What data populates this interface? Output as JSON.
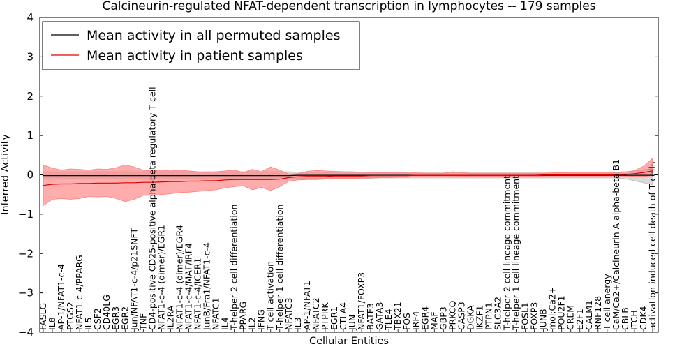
{
  "chart_data": {
    "type": "line",
    "title": "Calcineurin-regulated NFAT-dependent transcription in lymphocytes -- 179 samples",
    "xlabel": "Cellular Entities",
    "ylabel": "Inferred Activity",
    "ylim": [
      -4,
      4
    ],
    "yticks": [
      -4,
      -3,
      -2,
      -1,
      0,
      1,
      2,
      3,
      4
    ],
    "legend_position": "top-left",
    "categories": [
      "FASLG",
      "IL8",
      "AP-1/NFAT1-c-4",
      "PTGS2",
      "NFAT1-c-4/PPARG",
      "IL5",
      "CSF2",
      "CD40LG",
      "EGR3",
      "EGR2",
      "Jun/NFAT1-c-4/p21SNFT",
      "TNF",
      "CD4-positive CD25-positive alpha-beta regulatory T cell",
      "NFAT1-c-4 (dimer)/EGR1",
      "IL2RA",
      "NFAT1-c-4 (dimer)/EGR4",
      "NFAT1-c-4/MAF/IRF4",
      "NFAT1-c-4/ICER1",
      "JunB/Fra1/NFAT1-c-4",
      "NFATC1",
      "IL4",
      "T-helper 2 cell differentiation",
      "PPARG",
      "IL2",
      "IFNG",
      "T cell activation",
      "T-helper 1 cell differentiation",
      "NFATC3",
      "IL3",
      "AP-1/NFAT1",
      "NFATC2",
      "PTPRK",
      "EGR1",
      "CTLA4",
      "JUN",
      "NFAT1/FOXP3",
      "BATF3",
      "GATA3",
      "TLE4",
      "TBX21",
      "FOS",
      "IRF4",
      "EGR4",
      "MAF",
      "GBP3",
      "PRKCQ",
      "CASP3",
      "DGKA",
      "IKZF1",
      "PTPN1",
      "SLC3A2",
      "T-helper 2 cell lineage commitment",
      "T-helper 1 cell lineage commitment",
      "FOSL1",
      "FOXP3",
      "JUNB",
      "mol:Ca2+",
      "POU2F1",
      "CREM",
      "E2F1",
      "CALM1",
      "RNF128",
      "T cell anergy",
      "CaM/Ca2+/Calcineurin A alpha-beta B1",
      "CBLB",
      "ITCH",
      "CDK4",
      "activation-induced cell death of T cells"
    ],
    "series": [
      {
        "name": "Mean activity in all permuted samples",
        "color": "#000000",
        "band_color": "#bbbbbb",
        "values": [
          -0.02,
          -0.02,
          -0.02,
          -0.02,
          -0.02,
          -0.02,
          -0.02,
          -0.02,
          -0.02,
          -0.02,
          -0.02,
          -0.02,
          -0.02,
          -0.02,
          -0.02,
          -0.02,
          -0.02,
          -0.02,
          -0.02,
          -0.02,
          -0.02,
          -0.02,
          -0.02,
          -0.02,
          -0.02,
          -0.02,
          -0.02,
          -0.02,
          -0.01,
          -0.01,
          -0.01,
          -0.01,
          -0.01,
          -0.01,
          -0.01,
          -0.01,
          -0.01,
          -0.01,
          -0.01,
          -0.01,
          -0.01,
          -0.01,
          -0.01,
          -0.01,
          -0.01,
          -0.01,
          -0.01,
          -0.01,
          -0.01,
          -0.01,
          -0.01,
          -0.01,
          -0.01,
          -0.01,
          -0.01,
          -0.01,
          -0.01,
          -0.01,
          -0.01,
          -0.01,
          -0.01,
          -0.01,
          -0.01,
          -0.01,
          -0.01,
          -0.01,
          -0.01,
          -0.01
        ],
        "lower": [
          -0.11,
          -0.11,
          -0.11,
          -0.11,
          -0.11,
          -0.11,
          -0.11,
          -0.11,
          -0.11,
          -0.11,
          -0.11,
          -0.11,
          -0.11,
          -0.11,
          -0.11,
          -0.11,
          -0.11,
          -0.11,
          -0.11,
          -0.11,
          -0.11,
          -0.11,
          -0.11,
          -0.11,
          -0.11,
          -0.11,
          -0.11,
          -0.11,
          -0.09,
          -0.09,
          -0.09,
          -0.09,
          -0.09,
          -0.09,
          -0.09,
          -0.09,
          -0.09,
          -0.08,
          -0.08,
          -0.08,
          -0.08,
          -0.08,
          -0.08,
          -0.08,
          -0.08,
          -0.08,
          -0.08,
          -0.08,
          -0.08,
          -0.08,
          -0.08,
          -0.08,
          -0.08,
          -0.08,
          -0.08,
          -0.08,
          -0.08,
          -0.08,
          -0.08,
          -0.08,
          -0.08,
          -0.08,
          -0.08,
          -0.08,
          -0.1,
          -0.15,
          -0.2,
          -0.25
        ],
        "upper": [
          0.08,
          0.08,
          0.08,
          0.08,
          0.08,
          0.08,
          0.08,
          0.08,
          0.08,
          0.08,
          0.08,
          0.08,
          0.08,
          0.08,
          0.08,
          0.08,
          0.08,
          0.08,
          0.08,
          0.08,
          0.08,
          0.08,
          0.08,
          0.08,
          0.08,
          0.08,
          0.08,
          0.08,
          0.07,
          0.07,
          0.07,
          0.07,
          0.07,
          0.07,
          0.07,
          0.07,
          0.07,
          0.07,
          0.07,
          0.07,
          0.07,
          0.07,
          0.07,
          0.07,
          0.07,
          0.07,
          0.07,
          0.07,
          0.07,
          0.07,
          0.07,
          0.07,
          0.07,
          0.07,
          0.07,
          0.07,
          0.07,
          0.07,
          0.07,
          0.07,
          0.07,
          0.07,
          0.07,
          0.07,
          0.08,
          0.1,
          0.13,
          0.16
        ]
      },
      {
        "name": "Mean activity in patient samples",
        "color": "#dd0000",
        "band_color": "#ff8080",
        "values": [
          -0.27,
          -0.24,
          -0.23,
          -0.23,
          -0.22,
          -0.22,
          -0.21,
          -0.21,
          -0.21,
          -0.2,
          -0.2,
          -0.19,
          -0.19,
          -0.18,
          -0.17,
          -0.17,
          -0.16,
          -0.16,
          -0.15,
          -0.15,
          -0.13,
          -0.12,
          -0.12,
          -0.12,
          -0.12,
          -0.12,
          -0.11,
          -0.07,
          -0.05,
          -0.04,
          -0.04,
          -0.04,
          -0.03,
          -0.03,
          -0.03,
          -0.03,
          -0.02,
          -0.02,
          -0.02,
          -0.02,
          -0.02,
          -0.01,
          -0.01,
          -0.01,
          -0.01,
          -0.01,
          -0.01,
          -0.01,
          -0.01,
          -0.01,
          -0.01,
          -0.01,
          -0.01,
          -0.01,
          -0.01,
          0.0,
          0.0,
          0.0,
          0.0,
          0.0,
          0.0,
          0.0,
          0.0,
          0.0,
          0.01,
          0.03,
          0.06,
          0.1
        ],
        "lower": [
          -0.78,
          -0.62,
          -0.6,
          -0.62,
          -0.6,
          -0.55,
          -0.56,
          -0.55,
          -0.6,
          -0.68,
          -0.62,
          -0.52,
          -0.52,
          -0.5,
          -0.48,
          -0.45,
          -0.44,
          -0.42,
          -0.4,
          -0.38,
          -0.33,
          -0.3,
          -0.28,
          -0.38,
          -0.32,
          -0.4,
          -0.3,
          -0.16,
          -0.13,
          -0.12,
          -0.12,
          -0.11,
          -0.1,
          -0.09,
          -0.09,
          -0.08,
          -0.08,
          -0.07,
          -0.07,
          -0.06,
          -0.06,
          -0.05,
          -0.05,
          -0.05,
          -0.05,
          -0.05,
          -0.04,
          -0.04,
          -0.04,
          -0.04,
          -0.04,
          -0.04,
          -0.05,
          -0.04,
          -0.04,
          -0.03,
          -0.03,
          -0.03,
          -0.03,
          -0.03,
          -0.03,
          -0.03,
          -0.03,
          -0.03,
          -0.03,
          -0.04,
          -0.04,
          -0.02
        ],
        "upper": [
          0.25,
          0.17,
          0.12,
          0.15,
          0.14,
          0.12,
          0.15,
          0.14,
          0.18,
          0.25,
          0.2,
          0.12,
          0.1,
          0.12,
          0.1,
          0.12,
          0.1,
          0.08,
          0.06,
          0.08,
          0.1,
          0.12,
          0.06,
          0.14,
          0.08,
          0.2,
          0.12,
          0.02,
          0.03,
          0.09,
          0.11,
          0.1,
          0.09,
          0.08,
          0.08,
          0.07,
          0.06,
          0.06,
          0.05,
          0.05,
          0.05,
          0.05,
          0.04,
          0.04,
          0.04,
          0.08,
          0.06,
          0.04,
          0.04,
          0.04,
          0.04,
          0.04,
          0.04,
          0.04,
          0.04,
          0.04,
          0.05,
          0.06,
          0.05,
          0.05,
          0.05,
          0.05,
          0.05,
          0.05,
          0.07,
          0.11,
          0.22,
          0.42
        ]
      }
    ]
  }
}
